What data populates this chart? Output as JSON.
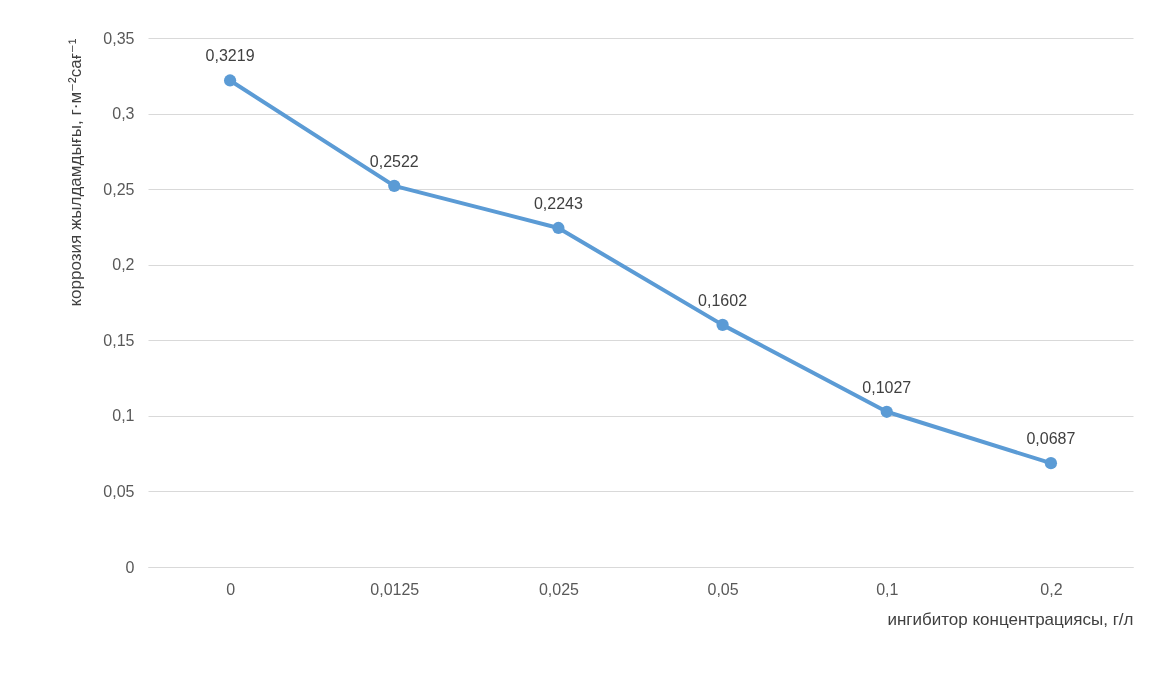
{
  "chart_data": {
    "type": "line",
    "xlabel": "ингибитор концентрациясы, г/л",
    "ylabel": "коррозия жылдамдығы, г·м⁻²сағ⁻¹",
    "categories": [
      "0",
      "0,0125",
      "0,025",
      "0,05",
      "0,1",
      "0,2"
    ],
    "series": [
      {
        "color": "#5b9bd5",
        "values": [
          0.3219,
          0.2522,
          0.2243,
          0.1602,
          0.1027,
          0.0687
        ],
        "value_labels": [
          "0,3219",
          "0,2522",
          "0,2243",
          "0,1602",
          "0,1027",
          "0,0687"
        ]
      }
    ],
    "ylim": [
      0,
      0.35
    ],
    "yticks": [
      {
        "value": 0,
        "label": "0"
      },
      {
        "value": 0.05,
        "label": "0,05"
      },
      {
        "value": 0.1,
        "label": "0,1"
      },
      {
        "value": 0.15,
        "label": "0,15"
      },
      {
        "value": 0.2,
        "label": "0,2"
      },
      {
        "value": 0.25,
        "label": "0,25"
      },
      {
        "value": 0.3,
        "label": "0,3"
      },
      {
        "value": 0.35,
        "label": "0,35"
      }
    ],
    "grid": "y",
    "marker": "circle",
    "line_style": "solid",
    "legend": false
  }
}
